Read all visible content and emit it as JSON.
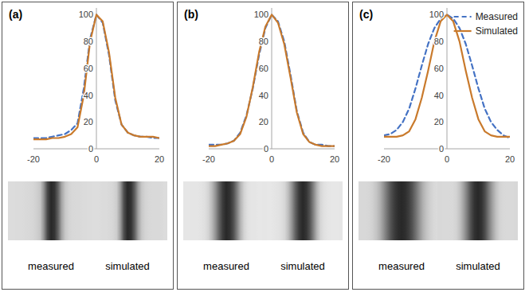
{
  "chart_data": [
    {
      "type": "line",
      "title": "(a)",
      "x": [
        -20,
        -18,
        -16,
        -14,
        -12,
        -10,
        -8,
        -6,
        -4,
        -2,
        0,
        2,
        4,
        6,
        8,
        10,
        12,
        14,
        16,
        18,
        20
      ],
      "series": [
        {
          "name": "Measured",
          "color": "#4472c4",
          "line_style": "dashed",
          "values": [
            8,
            8,
            8,
            9,
            10,
            11,
            14,
            19,
            45,
            82,
            100,
            94,
            70,
            36,
            18,
            12,
            10,
            9,
            9,
            8,
            8
          ]
        },
        {
          "name": "Simulated",
          "color": "#c97a2c",
          "line_style": "solid",
          "values": [
            7,
            7,
            7,
            8,
            8,
            9,
            11,
            16,
            40,
            80,
            100,
            95,
            72,
            38,
            18,
            12,
            10,
            9,
            9,
            9,
            8
          ]
        }
      ],
      "xlim": [
        -20,
        20
      ],
      "xticks": [
        -20,
        0,
        20
      ],
      "ylim": [
        0,
        105
      ],
      "yticks": [
        0,
        20,
        40,
        60,
        80,
        100
      ],
      "grid": false,
      "image_labels": [
        "measured",
        "simulated"
      ]
    },
    {
      "type": "line",
      "title": "(b)",
      "x": [
        -20,
        -18,
        -16,
        -14,
        -12,
        -10,
        -8,
        -6,
        -4,
        -2,
        0,
        2,
        4,
        6,
        8,
        10,
        12,
        14,
        16,
        18,
        20
      ],
      "series": [
        {
          "name": "Measured",
          "color": "#4472c4",
          "line_style": "dashed",
          "values": [
            3,
            3,
            3,
            4,
            6,
            12,
            25,
            45,
            70,
            90,
            100,
            95,
            80,
            55,
            28,
            12,
            5,
            3,
            3,
            2,
            2
          ]
        },
        {
          "name": "Simulated",
          "color": "#c97a2c",
          "line_style": "solid",
          "values": [
            2,
            2,
            3,
            4,
            6,
            11,
            24,
            46,
            72,
            91,
            100,
            94,
            78,
            53,
            27,
            11,
            5,
            3,
            2,
            2,
            2
          ]
        }
      ],
      "xlim": [
        -20,
        20
      ],
      "xticks": [
        -20,
        0,
        20
      ],
      "ylim": [
        0,
        105
      ],
      "yticks": [
        0,
        20,
        40,
        60,
        80,
        100
      ],
      "grid": false,
      "image_labels": [
        "measured",
        "simulated"
      ]
    },
    {
      "type": "line",
      "title": "(c)",
      "x": [
        -20,
        -18,
        -16,
        -14,
        -12,
        -10,
        -8,
        -6,
        -4,
        -2,
        0,
        2,
        4,
        6,
        8,
        10,
        12,
        14,
        16,
        18,
        20
      ],
      "series": [
        {
          "name": "Measured",
          "color": "#4472c4",
          "line_style": "dashed",
          "values": [
            10,
            11,
            14,
            20,
            30,
            45,
            62,
            78,
            90,
            97,
            100,
            97,
            90,
            78,
            62,
            45,
            30,
            20,
            14,
            10,
            8
          ]
        },
        {
          "name": "Simulated",
          "color": "#c97a2c",
          "line_style": "solid",
          "values": [
            9,
            9,
            9,
            10,
            13,
            22,
            38,
            58,
            80,
            95,
            100,
            95,
            80,
            58,
            38,
            22,
            13,
            10,
            9,
            9,
            9
          ]
        }
      ],
      "xlim": [
        -20,
        20
      ],
      "xticks": [
        -20,
        0,
        20
      ],
      "ylim": [
        0,
        105
      ],
      "yticks": [
        0,
        20,
        40,
        60,
        80,
        100
      ],
      "grid": false,
      "legend": "upper right",
      "image_labels": [
        "measured",
        "simulated"
      ]
    }
  ]
}
